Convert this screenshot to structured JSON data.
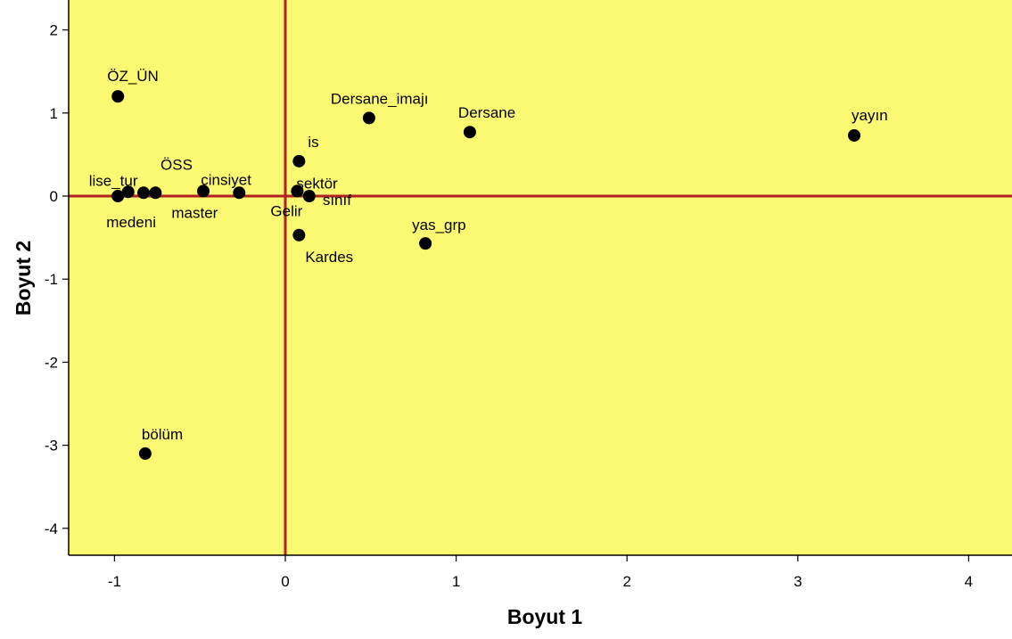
{
  "chart_data": {
    "type": "scatter",
    "title": "",
    "xlabel": "Boyut 1",
    "ylabel": "Boyut 2",
    "xlim": [
      -1.27,
      4.27
    ],
    "ylim": [
      -4.33,
      2.33
    ],
    "xticks": [
      "-1",
      "0",
      "1",
      "2",
      "3",
      "4"
    ],
    "yticks": [
      "2",
      "1",
      "0",
      "-1",
      "-2",
      "-3",
      "-4"
    ],
    "grid": false,
    "reference_lines": {
      "x": 0,
      "y": 0
    },
    "colors": {
      "plot_background": "#fbf872",
      "reference_line": "#b22222",
      "point": "#000000"
    },
    "points": [
      {
        "label": "ÖZ_ÜN",
        "x": -0.98,
        "y": 1.2
      },
      {
        "label": "Dersane_imajı",
        "x": 0.49,
        "y": 0.94
      },
      {
        "label": "Dersane",
        "x": 1.08,
        "y": 0.77
      },
      {
        "label": "yayın",
        "x": 3.33,
        "y": 0.73
      },
      {
        "label": "is",
        "x": 0.08,
        "y": 0.42
      },
      {
        "label": "lise_tur",
        "x": -0.92,
        "y": 0.05
      },
      {
        "label": "medeni",
        "x": -0.98,
        "y": 0.0
      },
      {
        "label": "",
        "x": -0.83,
        "y": 0.04
      },
      {
        "label": "master",
        "x": -0.76,
        "y": 0.04
      },
      {
        "label": "ÖSS",
        "x": -0.48,
        "y": 0.06
      },
      {
        "label": "cinsiyet",
        "x": -0.27,
        "y": 0.04
      },
      {
        "label": "Gelir",
        "x": 0.07,
        "y": 0.06
      },
      {
        "label": "sektör",
        "x": 0.07,
        "y": 0.06
      },
      {
        "label": "sınıf",
        "x": 0.14,
        "y": 0.0
      },
      {
        "label": "Kardes",
        "x": 0.08,
        "y": -0.47
      },
      {
        "label": "yas_grp",
        "x": 0.82,
        "y": -0.57
      },
      {
        "label": "bölüm",
        "x": -0.82,
        "y": -3.1
      }
    ]
  }
}
